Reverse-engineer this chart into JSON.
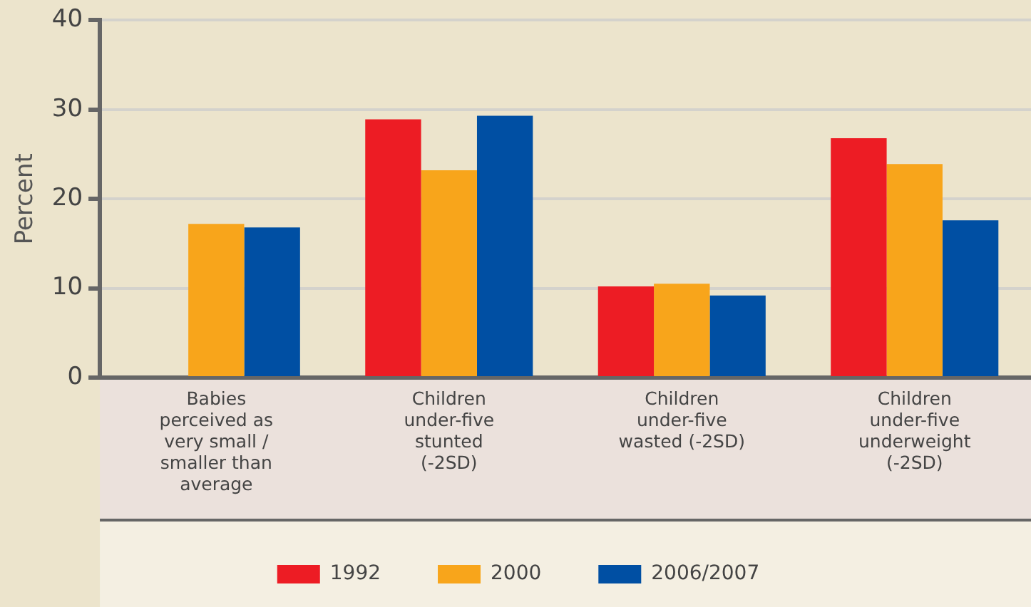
{
  "chart_data": {
    "type": "bar",
    "ylabel": "Percent",
    "categories": [
      "Babies perceived as very small / smaller than average",
      "Children under-five stunted (-2SD)",
      "Children under-five wasted (-2SD)",
      "Children under-five underweight (-2SD)"
    ],
    "series": [
      {
        "name": "1992",
        "color": "#ed1c24",
        "values": [
          null,
          28.9,
          10.2,
          26.8
        ]
      },
      {
        "name": "2000",
        "color": "#f8a51b",
        "values": [
          17.2,
          23.2,
          10.5,
          23.9
        ]
      },
      {
        "name": "2006/2007",
        "color": "#004fa3",
        "values": [
          16.8,
          29.3,
          9.2,
          17.6
        ]
      }
    ],
    "ylim": [
      0,
      40
    ],
    "yticks": [
      0,
      10,
      20,
      30,
      40
    ],
    "grid": "y",
    "legend": "bottom"
  }
}
